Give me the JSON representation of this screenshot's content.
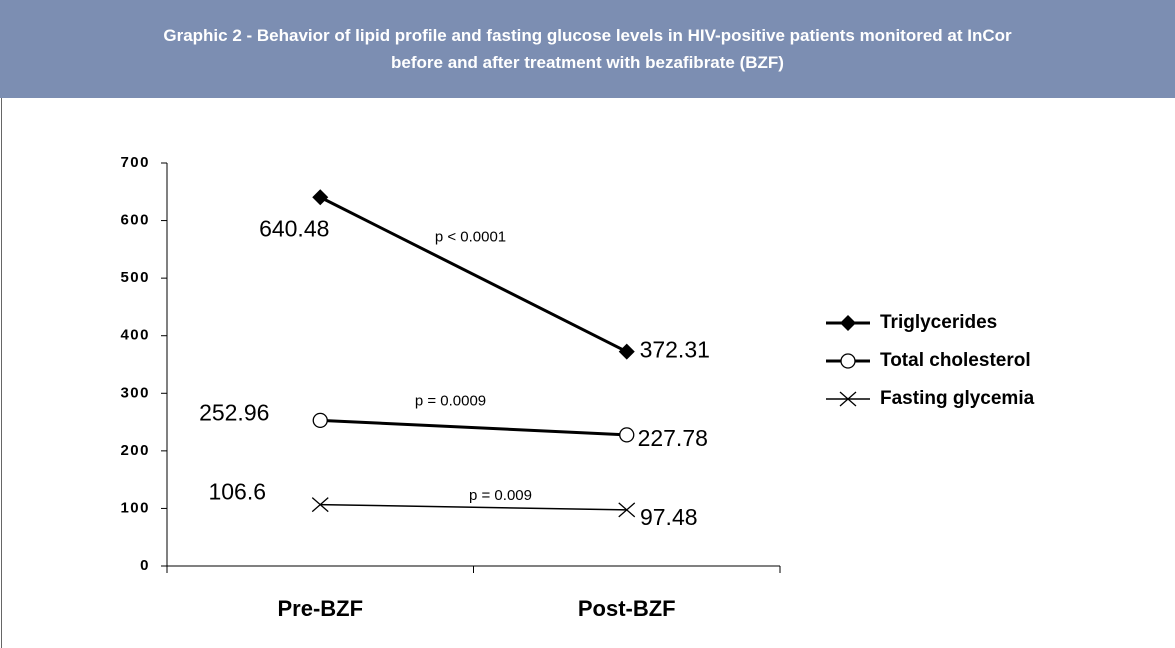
{
  "chart_data": {
    "type": "line",
    "title": "Graphic 2 - Behavior of lipid profile and fasting glucose levels in HIV-positive patients monitored at InCor before and after treatment with bezafibrate (BZF)",
    "categories": [
      "Pre-BZF",
      "Post-BZF"
    ],
    "series": [
      {
        "name": "Triglycerides",
        "color": "#000000",
        "marker": "diamond",
        "values": [
          640.48,
          372.31
        ],
        "annotation": "p < 0.0001"
      },
      {
        "name": "Total cholesterol",
        "color": "#000000",
        "marker": "circle",
        "values": [
          252.96,
          227.78
        ],
        "annotation": "p = 0.0009"
      },
      {
        "name": "Fasting glycemia",
        "color": "#000000",
        "marker": "cross",
        "values": [
          106.6,
          97.48
        ],
        "annotation": "p = 0.009"
      }
    ],
    "ylim": [
      0,
      700
    ],
    "yticks": [
      0,
      100,
      200,
      300,
      400,
      500,
      600,
      700
    ],
    "grid": false,
    "legend": "right"
  }
}
